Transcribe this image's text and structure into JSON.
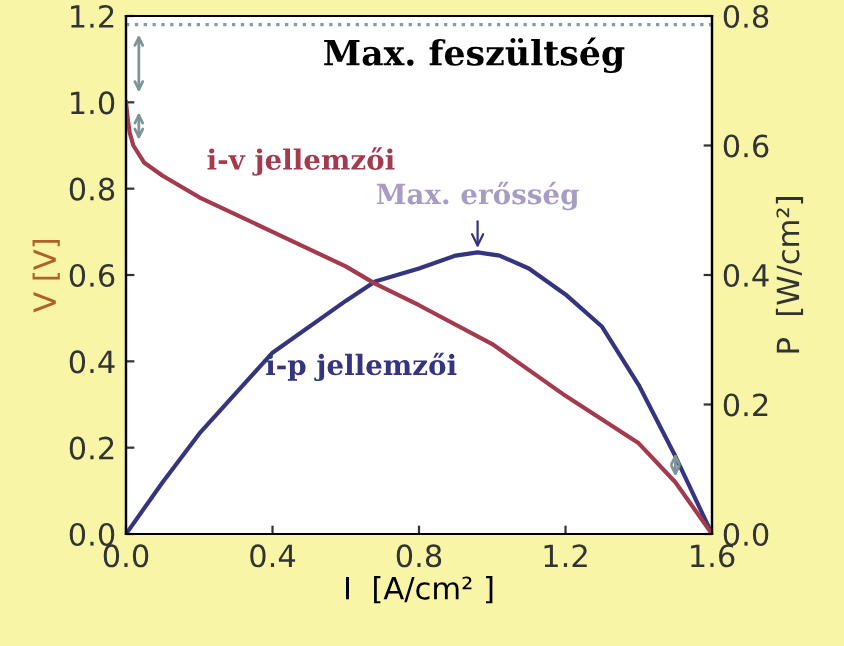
{
  "chart_data": {
    "type": "line",
    "xlabel": "I  [A/cm² ]",
    "ylabel": "V [V]",
    "y2label": "P  [W/cm²]",
    "xlim": [
      0,
      1.6
    ],
    "xticks": [
      {
        "value": 0,
        "label": "0.0"
      },
      0.4,
      0.8,
      1.2,
      1.6
    ],
    "ylim": [
      0,
      1.2
    ],
    "yticks": [
      {
        "value": 0,
        "label": "0.0"
      },
      0.2,
      0.4,
      0.6,
      0.8,
      {
        "value": 1,
        "label": "1.0"
      },
      1.2
    ],
    "y2lim": [
      0,
      0.8
    ],
    "y2ticks": [
      {
        "value": 0,
        "label": "0.0"
      },
      0.2,
      0.4,
      0.6,
      0.8
    ],
    "series": [
      {
        "name": "i-v jellemzői",
        "color": "#a33a4e",
        "x": [
          0,
          0.005,
          0.01,
          0.02,
          0.05,
          0.1,
          0.2,
          0.4,
          0.6,
          0.68,
          0.8,
          1.0,
          1.2,
          1.4,
          1.5,
          1.6
        ],
        "values": [
          1.0,
          0.96,
          0.93,
          0.9,
          0.86,
          0.83,
          0.78,
          0.7,
          0.62,
          0.58,
          0.53,
          0.44,
          0.32,
          0.21,
          0.12,
          0.0
        ]
      },
      {
        "name": "i-p jellemzői",
        "color": "#34357e",
        "axis": "y2",
        "x": [
          0,
          0.1,
          0.2,
          0.4,
          0.6,
          0.68,
          0.8,
          0.9,
          0.96,
          1.02,
          1.1,
          1.2,
          1.3,
          1.4,
          1.5,
          1.55,
          1.6
        ],
        "values": [
          0,
          0.08,
          0.155,
          0.28,
          0.36,
          0.39,
          0.41,
          0.43,
          0.435,
          0.43,
          0.41,
          0.37,
          0.32,
          0.23,
          0.12,
          0.06,
          0
        ]
      }
    ],
    "ref_lines": [
      {
        "axis": "y",
        "value": 1.18,
        "label": "Max. feszültség",
        "color": "#8a9aa0",
        "line_style": "dotted"
      }
    ],
    "annotations": [
      {
        "text": "Max. erősség",
        "x": 0.96,
        "y": 0.65
      }
    ],
    "grid": false,
    "legend": false
  }
}
